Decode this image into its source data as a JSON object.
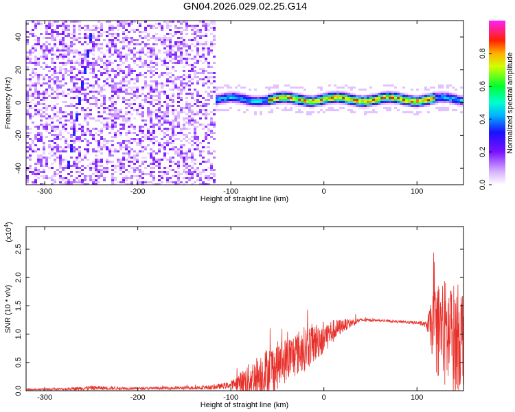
{
  "figure": {
    "title": "GN04.2026.029.02.25.G14"
  },
  "colors": {
    "signal": "#ff0000",
    "series_line": "#e8302a",
    "spectrogram_low": "#7a12ff",
    "spectrogram_high": "#ff0000"
  },
  "chart_data": [
    {
      "type": "heatmap",
      "name": "spectrogram",
      "title": "",
      "xlabel": "Height of straight line (km)",
      "ylabel": "Frequency (Hz)",
      "xlim": [
        -320,
        150
      ],
      "ylim": [
        -50,
        50
      ],
      "xticks": [
        -300,
        -200,
        -100,
        0,
        100
      ],
      "yticks": [
        -40,
        -20,
        0,
        20,
        40
      ],
      "colorbar": {
        "label": "Normalized spectral amplitude",
        "range": [
          0.0,
          1.0
        ],
        "ticks": [
          0.0,
          0.2,
          0.4,
          0.6,
          0.8
        ],
        "tick_labels": [
          "0.0",
          "0.2",
          "0.4",
          "0.6",
          "0.8"
        ],
        "colormap": "rainbow (white-violet-blue-cyan-green-yellow-red-magenta)"
      },
      "features": [
        {
          "name": "noise region",
          "x_range": [
            -320,
            -115
          ],
          "amplitude": 0.15
        },
        {
          "name": "dominant line",
          "x_range": [
            -115,
            150
          ],
          "frequency_hz": 2,
          "amplitude_peak": 0.9
        },
        {
          "name": "diagonal streak",
          "from": [
            -275,
            -40
          ],
          "to": [
            -248,
            48
          ],
          "amplitude": 0.25
        }
      ]
    },
    {
      "type": "line",
      "name": "snr",
      "title": "",
      "xlabel": "Height of straight line (km)",
      "ylabel": "SNR (10 * v/v)",
      "yscale_label": "(x10",
      "yscale_exp": "4",
      "xlim": [
        -320,
        150
      ],
      "ylim": [
        0,
        2.9
      ],
      "xticks": [
        -300,
        -200,
        -100,
        0,
        100
      ],
      "yticks": [
        0.0,
        0.5,
        1.0,
        1.5,
        2.0,
        2.5
      ],
      "ytick_labels": [
        "0.0",
        "0.5",
        "1.0",
        "1.5",
        "2.0",
        "2.5"
      ],
      "series": [
        {
          "name": "SNR",
          "x": [
            -320,
            -280,
            -250,
            -200,
            -150,
            -120,
            -100,
            -80,
            -60,
            -40,
            -20,
            0,
            20,
            40,
            60,
            80,
            100,
            110,
            120,
            130,
            140,
            150
          ],
          "base": [
            0.02,
            0.03,
            0.05,
            0.04,
            0.05,
            0.06,
            0.1,
            0.2,
            0.35,
            0.55,
            0.75,
            0.95,
            1.15,
            1.25,
            1.24,
            1.22,
            1.2,
            1.17,
            1.12,
            1.0,
            0.9,
            1.0
          ],
          "amp": [
            0.01,
            0.02,
            0.04,
            0.02,
            0.03,
            0.04,
            0.06,
            0.3,
            0.45,
            0.4,
            0.4,
            0.3,
            0.12,
            0.03,
            0.02,
            0.02,
            0.03,
            0.05,
            0.8,
            1.0,
            1.0,
            0.9
          ]
        }
      ]
    }
  ]
}
